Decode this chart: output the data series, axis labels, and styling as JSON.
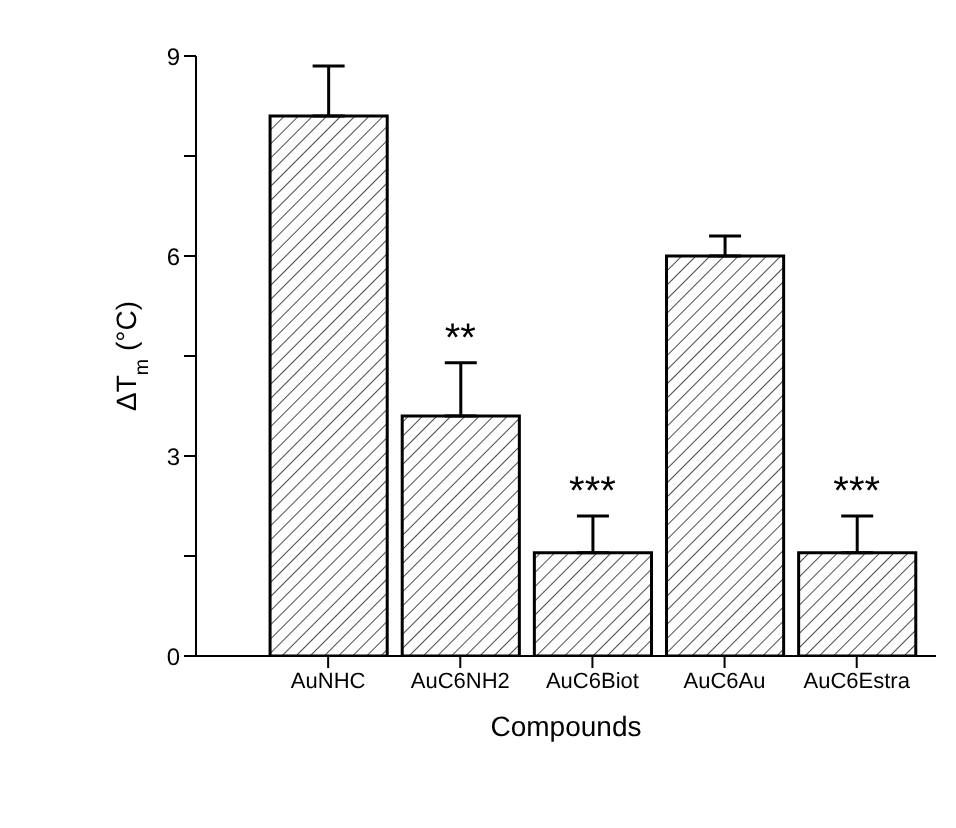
{
  "chart_data": {
    "type": "bar",
    "xlabel": "Compounds",
    "ylabel": "ΔT$_{m}$ (°C)",
    "categories": [
      "AuNHC",
      "AuC6NH2",
      "AuC6Biot",
      "AuC6Au",
      "AuC6Estra"
    ],
    "values": [
      8.1,
      3.6,
      1.55,
      6.0,
      1.55
    ],
    "errors": [
      [
        8.1,
        8.85
      ],
      [
        3.6,
        4.4
      ],
      [
        1.55,
        2.1
      ],
      [
        6.0,
        6.3
      ],
      [
        1.55,
        2.1
      ]
    ],
    "color": "#000000",
    "ylim": [
      0,
      9
    ],
    "yticks": [
      0,
      {
        "value": 1.5,
        "label": null
      },
      3,
      {
        "value": 4.5,
        "label": null
      },
      6,
      {
        "value": 7.5,
        "label": null
      },
      9
    ],
    "annotations": [
      {
        "text": "**",
        "x": "AuC6NH2",
        "y": 4.4
      },
      {
        "text": "***",
        "x": "AuC6Biot",
        "y": 2.1
      },
      {
        "text": "***",
        "x": "AuC6Estra",
        "y": 2.1
      }
    ]
  }
}
